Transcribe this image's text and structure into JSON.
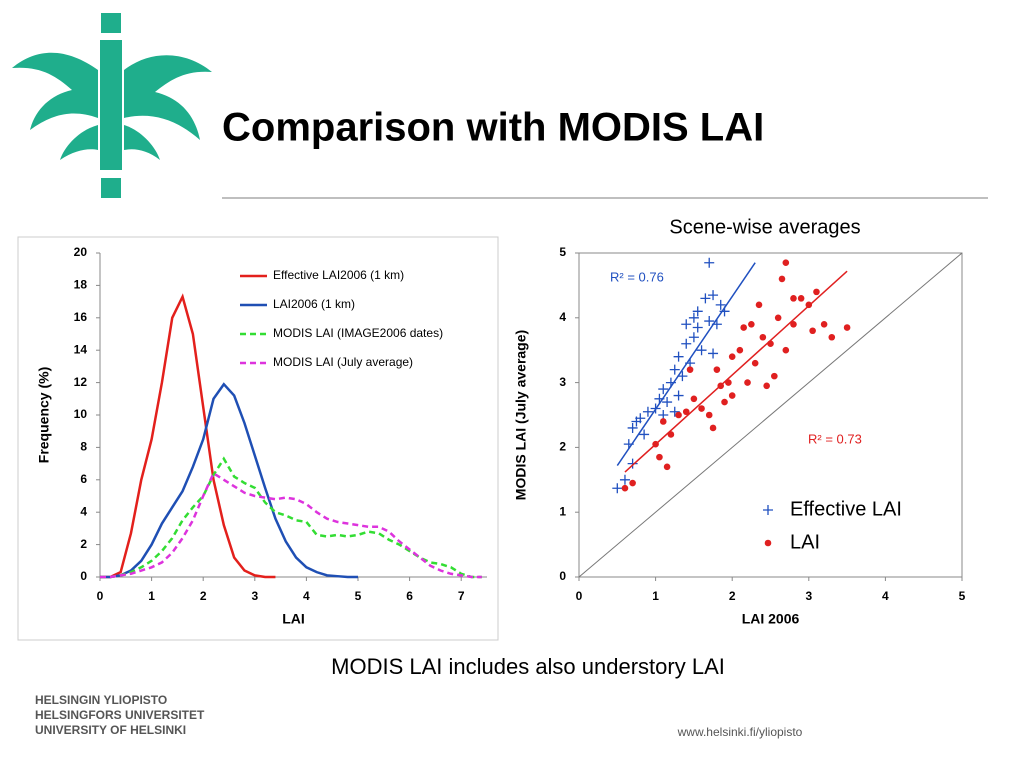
{
  "slide": {
    "title": "Comparison with MODIS LAI",
    "subtitle": "Scene-wise averages",
    "caption": "MODIS LAI includes also understory LAI",
    "logo_lines": [
      "HELSINGIN YLIOPISTO",
      "HELSINGFORS UNIVERSITET",
      "UNIVERSITY OF HELSINKI"
    ],
    "url": "www.helsinki.fi/yliopisto"
  },
  "chart_data": [
    {
      "type": "line",
      "x_label": "LAI",
      "y_label": "Frequency (%)",
      "xlim": [
        0,
        7.5
      ],
      "xticks": [
        0,
        1,
        2,
        3,
        4,
        5,
        6,
        7
      ],
      "ylim": [
        0,
        20
      ],
      "yticks": [
        0,
        2,
        4,
        6,
        8,
        10,
        12,
        14,
        16,
        18,
        20
      ],
      "grid": false,
      "legend": "upper right",
      "series": [
        {
          "name": "Effective LAI2006 (1 km)",
          "color": "#e3201c",
          "dashed": false,
          "x": [
            0,
            0.2,
            0.4,
            0.6,
            0.8,
            1.0,
            1.2,
            1.4,
            1.6,
            1.8,
            2.0,
            2.2,
            2.4,
            2.6,
            2.8,
            3.0,
            3.2,
            3.4
          ],
          "values": [
            0,
            0,
            0.3,
            2.7,
            6,
            8.5,
            12,
            16,
            17.3,
            15,
            10.5,
            6,
            3.2,
            1.2,
            0.4,
            0.1,
            0,
            0
          ]
        },
        {
          "name": "LAI2006 (1 km)",
          "color": "#1f4fb4",
          "dashed": false,
          "x": [
            0,
            0.2,
            0.4,
            0.6,
            0.8,
            1.0,
            1.2,
            1.4,
            1.6,
            1.8,
            2.0,
            2.2,
            2.4,
            2.6,
            2.8,
            3.0,
            3.2,
            3.4,
            3.6,
            3.8,
            4.0,
            4.2,
            4.4,
            4.6,
            4.8,
            5.0
          ],
          "values": [
            0,
            0,
            0.1,
            0.4,
            1,
            2,
            3.3,
            4.3,
            5.3,
            6.8,
            8.5,
            11,
            11.9,
            11.2,
            9.5,
            7.5,
            5.5,
            3.6,
            2.2,
            1.2,
            0.6,
            0.3,
            0.1,
            0.05,
            0,
            0
          ]
        },
        {
          "name": "MODIS LAI (IMAGE2006 dates)",
          "color": "#33dd33",
          "dashed": true,
          "x": [
            0,
            0.2,
            0.4,
            0.6,
            0.8,
            1.0,
            1.2,
            1.4,
            1.6,
            1.8,
            2.0,
            2.2,
            2.4,
            2.6,
            2.8,
            3.0,
            3.2,
            3.4,
            3.6,
            3.8,
            4.0,
            4.2,
            4.4,
            4.6,
            4.8,
            5.0,
            5.2,
            5.4,
            5.6,
            5.8,
            6.0,
            6.2,
            6.4,
            6.6,
            6.8,
            7.0,
            7.2,
            7.4
          ],
          "values": [
            0,
            0,
            0.1,
            0.3,
            0.6,
            1,
            1.6,
            2.4,
            3.5,
            4.3,
            5,
            6.3,
            7.3,
            6.2,
            5.8,
            5.5,
            4.6,
            4,
            3.8,
            3.5,
            3.4,
            2.6,
            2.5,
            2.6,
            2.5,
            2.6,
            2.8,
            2.7,
            2.3,
            2,
            1.6,
            1.2,
            0.9,
            0.8,
            0.6,
            0.2,
            0,
            0
          ]
        },
        {
          "name": "MODIS LAI (July average)",
          "color": "#dd33dd",
          "dashed": true,
          "x": [
            0,
            0.2,
            0.4,
            0.6,
            0.8,
            1.0,
            1.2,
            1.4,
            1.6,
            1.8,
            2.0,
            2.2,
            2.4,
            2.6,
            2.8,
            3.0,
            3.2,
            3.4,
            3.6,
            3.8,
            4.0,
            4.2,
            4.4,
            4.6,
            4.8,
            5.0,
            5.2,
            5.4,
            5.6,
            5.8,
            6.0,
            6.2,
            6.4,
            6.6,
            6.8,
            7.0,
            7.2,
            7.4
          ],
          "values": [
            0,
            0,
            0.1,
            0.2,
            0.4,
            0.6,
            0.9,
            1.5,
            2.4,
            3.5,
            5,
            6.4,
            6,
            5.6,
            5.2,
            5,
            4.9,
            4.8,
            4.9,
            4.8,
            4.5,
            4,
            3.6,
            3.4,
            3.3,
            3.2,
            3.1,
            3.1,
            2.8,
            2.2,
            1.7,
            1.2,
            0.7,
            0.4,
            0.2,
            0.1,
            0,
            0
          ]
        }
      ]
    },
    {
      "type": "scatter",
      "x_label": "LAI 2006",
      "y_label": "MODIS LAI (July average)",
      "xlim": [
        0,
        5
      ],
      "xticks": [
        0,
        1,
        2,
        3,
        4,
        5
      ],
      "ylim": [
        0,
        5
      ],
      "yticks": [
        0,
        1,
        2,
        3,
        4,
        5
      ],
      "grid": false,
      "legend": "lower right",
      "series": [
        {
          "name": "Effective LAI",
          "color": "#2050c0",
          "marker": "plus",
          "x": [
            0.5,
            0.6,
            0.65,
            0.7,
            0.7,
            0.75,
            0.8,
            0.85,
            0.9,
            1.0,
            1.05,
            1.1,
            1.1,
            1.15,
            1.2,
            1.25,
            1.3,
            1.3,
            1.35,
            1.4,
            1.4,
            1.45,
            1.5,
            1.5,
            1.55,
            1.6,
            1.65,
            1.7,
            1.7,
            1.75,
            1.8,
            1.85,
            1.9,
            1.75,
            1.55,
            1.25
          ],
          "values": [
            1.37,
            1.5,
            2.05,
            1.75,
            2.3,
            2.4,
            2.45,
            2.2,
            2.55,
            2.6,
            2.75,
            2.5,
            2.9,
            2.7,
            3.0,
            3.2,
            2.8,
            3.4,
            3.1,
            3.6,
            3.9,
            3.3,
            3.7,
            4.0,
            4.1,
            3.5,
            4.3,
            4.85,
            3.95,
            4.35,
            3.9,
            4.2,
            4.1,
            3.45,
            3.85,
            2.55
          ]
        },
        {
          "name": "LAI",
          "color": "#e02020",
          "marker": "circle",
          "x": [
            0.6,
            0.7,
            1.0,
            1.05,
            1.1,
            1.15,
            1.2,
            1.3,
            1.4,
            1.5,
            1.6,
            1.7,
            1.75,
            1.8,
            1.85,
            1.9,
            1.95,
            2.0,
            2.0,
            2.1,
            2.2,
            2.25,
            2.3,
            2.4,
            2.5,
            2.55,
            2.6,
            2.65,
            2.7,
            2.7,
            2.8,
            2.9,
            3.0,
            3.05,
            3.1,
            3.2,
            3.3,
            3.5,
            2.35,
            2.15,
            1.45,
            2.45,
            2.8
          ],
          "values": [
            1.37,
            1.45,
            2.05,
            1.85,
            2.4,
            1.7,
            2.2,
            2.5,
            2.55,
            2.75,
            2.6,
            2.5,
            2.3,
            3.2,
            2.95,
            2.7,
            3.0,
            2.8,
            3.4,
            3.5,
            3.0,
            3.9,
            3.3,
            3.7,
            3.6,
            3.1,
            4.0,
            4.6,
            4.85,
            3.5,
            3.9,
            4.3,
            4.2,
            3.8,
            4.4,
            3.9,
            3.7,
            3.85,
            4.2,
            3.85,
            3.2,
            2.95,
            4.3
          ]
        }
      ],
      "trendlines": [
        {
          "label": "R² = 0.76",
          "color": "#2050c0",
          "x": [
            0.5,
            2.3
          ],
          "values": [
            1.72,
            4.85
          ]
        },
        {
          "label": "R² = 0.73",
          "color": "#e02020",
          "x": [
            0.6,
            3.5
          ],
          "values": [
            1.62,
            4.72
          ]
        }
      ]
    }
  ]
}
